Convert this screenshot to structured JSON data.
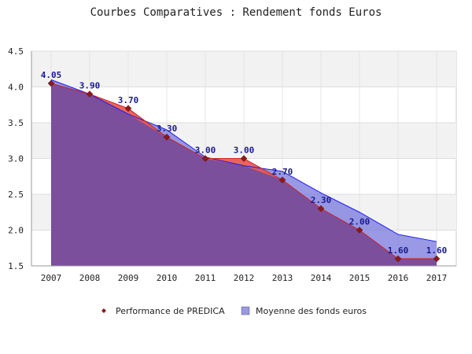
{
  "chart_data": {
    "type": "area",
    "title": "Courbes Comparatives : Rendement fonds Euros",
    "xlabel": "",
    "ylabel": "",
    "x": [
      2007,
      2008,
      2009,
      2010,
      2011,
      2012,
      2013,
      2014,
      2015,
      2016,
      2017
    ],
    "ylim": [
      1.5,
      4.5
    ],
    "yticks": [
      "1.5",
      "2.0",
      "2.5",
      "3.0",
      "3.5",
      "4.0",
      "4.5"
    ],
    "grid": true,
    "legend_position": "bottom",
    "series": [
      {
        "name": "Performance de PREDICA",
        "values": [
          4.05,
          3.9,
          3.7,
          3.3,
          3.0,
          3.0,
          2.7,
          2.3,
          2.0,
          1.6,
          1.6
        ],
        "labels": [
          "4.05",
          "3.90",
          "3.70",
          "3.30",
          "3.00",
          "3.00",
          "2.70",
          "2.30",
          "2.00",
          "1.60",
          "1.60"
        ],
        "color": "#e8534a",
        "marker_color": "#8b1a1a"
      },
      {
        "name": "Moyenne des fonds euros",
        "values": [
          4.1,
          3.9,
          3.62,
          3.4,
          3.02,
          2.9,
          2.82,
          2.52,
          2.25,
          1.94,
          1.84
        ],
        "color": "#7777dd",
        "line_color": "#1a1aee"
      }
    ],
    "overlap_color": "#7b4f9b"
  }
}
